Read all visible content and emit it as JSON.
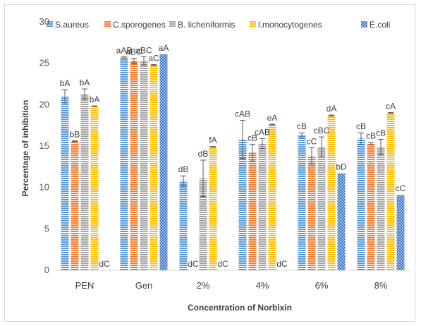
{
  "chart_data": {
    "type": "bar",
    "title": "",
    "xlabel": "Concentration of Norbixin",
    "ylabel": "Percentage of inhibition",
    "ylim": [
      0,
      30
    ],
    "yticks": [
      0,
      5,
      10,
      15,
      20,
      25,
      30
    ],
    "grid": false,
    "legend_position": "top",
    "categories": [
      "PEN",
      "Gen",
      "2%",
      "4%",
      "6%",
      "8%"
    ],
    "series": [
      {
        "name": "S.aureus",
        "color": "#5b9bd5",
        "pattern": "horizontal-stripes",
        "values": [
          21.0,
          25.7,
          10.8,
          15.8,
          16.3,
          15.9
        ],
        "errors": [
          0.8,
          0.1,
          0.6,
          2.3,
          0.3,
          0.7
        ],
        "labels": [
          "bA",
          "aAB",
          "dB",
          "cAB",
          "cB",
          "cB"
        ]
      },
      {
        "name": "C.sporogenes",
        "color": "#ed7d31",
        "pattern": "horizontal-stripes",
        "values": [
          15.6,
          25.3,
          0,
          14.2,
          13.8,
          15.3
        ],
        "errors": [
          0.05,
          0.3,
          0,
          1.0,
          1.0,
          0.15
        ],
        "labels": [
          "bB",
          "aBC",
          "dC",
          "cB",
          "cC",
          "cB"
        ]
      },
      {
        "name": "B. licheniformis",
        "color": "#a5a5a5",
        "pattern": "horizontal-stripes",
        "values": [
          21.3,
          25.3,
          11.1,
          15.3,
          14.9,
          14.9
        ],
        "errors": [
          0.6,
          0.5,
          2.2,
          0.6,
          1.2,
          0.9
        ],
        "labels": [
          "bA",
          "aBC",
          "dB",
          "cAB",
          "cBC",
          "cB"
        ]
      },
      {
        "name": "l.monocytogenes",
        "color": "#ffc000",
        "pattern": "horizontal-stripes",
        "values": [
          19.8,
          24.8,
          14.9,
          17.6,
          18.7,
          19.0
        ],
        "errors": [
          0.05,
          0.05,
          0.05,
          0.05,
          0.05,
          0.05
        ],
        "labels": [
          "bA",
          "aC",
          "fA",
          "eA",
          "dA",
          "cA"
        ]
      },
      {
        "name": "E.coli",
        "color": "#4472c4",
        "pattern": "checker",
        "values": [
          0,
          26.1,
          0,
          0,
          11.7,
          9.1
        ],
        "errors": [
          0,
          0,
          0,
          0,
          0,
          0
        ],
        "labels": [
          "dC",
          "aA",
          "dC",
          "dC",
          "bD",
          "cC"
        ]
      }
    ]
  }
}
